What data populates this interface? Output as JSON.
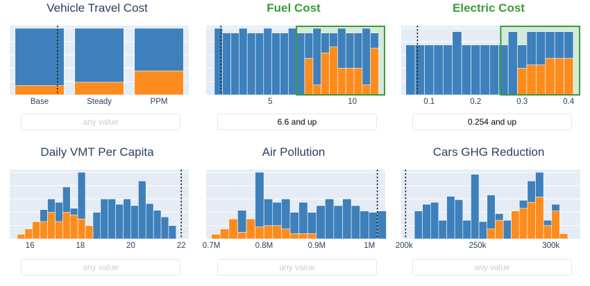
{
  "colors": {
    "total": "#3d80bb",
    "selected": "#fd8c1f",
    "plot_bg": "#e5ecf6",
    "grid": "#ffffff",
    "brush_fill": "#d3ead8",
    "brush_stroke": "#3c9a3c",
    "title_active": "#3c9a3c",
    "title": "#2a3f5f"
  },
  "charts": [
    {
      "id": "vehicle-travel-cost",
      "title": "Vehicle Travel Cost",
      "active": false,
      "filter_text": "any value",
      "filter_empty": true,
      "chart_data": {
        "type": "bar",
        "categories": [
          "Base",
          "Steady",
          "PPM"
        ],
        "series": [
          {
            "values": [
              1.0,
              1.0,
              1.0
            ]
          },
          {
            "values": [
              0.14,
              0.19,
              0.36
            ]
          }
        ],
        "ylim": [
          0,
          1.04
        ],
        "reference_line": 0.3,
        "x_ticks": [
          {
            "label": "Base",
            "index": 0
          },
          {
            "label": "Steady",
            "index": 1
          },
          {
            "label": "PPM",
            "index": 2
          }
        ],
        "grid": true
      }
    },
    {
      "id": "fuel-cost",
      "title": "Fuel Cost",
      "active": true,
      "filter_text": "6.6 and up",
      "filter_empty": false,
      "chart_data": {
        "type": "bar",
        "xlim": [
          1.1,
          12
        ],
        "bin_width": 0.5,
        "bin_start": 1.6,
        "series": [
          {
            "values": [
              1.0,
              0.93,
              0.93,
              1.0,
              0.93,
              0.93,
              1.0,
              0.93,
              0.93,
              1.0,
              0.93,
              0.93,
              1.0,
              0.93,
              0.93,
              1.0,
              0.93,
              0.93,
              1.0,
              0.93
            ]
          },
          {
            "values": [
              0,
              0,
              0,
              0,
              0,
              0,
              0,
              0,
              0,
              0,
              0,
              0.55,
              0.15,
              0.63,
              0.72,
              0.4,
              0.4,
              0.4,
              0.15,
              0.7
            ]
          }
        ],
        "ylim": [
          0,
          1.04
        ],
        "reference_line": 2.0,
        "brush": [
          6.6,
          12
        ],
        "x_ticks": [
          {
            "label": "5",
            "value": 5
          },
          {
            "label": "10",
            "value": 10
          }
        ],
        "grid": true
      }
    },
    {
      "id": "electric-cost",
      "title": "Electric Cost",
      "active": true,
      "filter_text": "0.254 and up",
      "filter_empty": false,
      "chart_data": {
        "type": "bar",
        "xlim": [
          0.04,
          0.425
        ],
        "bin_width": 0.02,
        "bin_start": 0.05,
        "series": [
          {
            "values": [
              0.75,
              0.75,
              0.75,
              0.75,
              0.75,
              0.95,
              0.75,
              0.75,
              0.75,
              0.75,
              0.75,
              0.95,
              0.75,
              0.95,
              0.95,
              0.95,
              0.95,
              0.95
            ]
          },
          {
            "values": [
              0,
              0,
              0,
              0,
              0,
              0,
              0,
              0,
              0,
              0,
              0,
              0,
              0.4,
              0.45,
              0.45,
              0.55,
              0.55,
              0.55
            ]
          }
        ],
        "ylim": [
          0,
          1.04
        ],
        "reference_line": 0.075,
        "brush": [
          0.254,
          0.425
        ],
        "x_ticks": [
          {
            "label": "0.1",
            "value": 0.1
          },
          {
            "label": "0.2",
            "value": 0.2
          },
          {
            "label": "0.3",
            "value": 0.3
          },
          {
            "label": "0.4",
            "value": 0.4
          }
        ],
        "grid": true
      }
    },
    {
      "id": "daily-vmt-per-capita",
      "title": "Daily VMT Per Capita",
      "active": false,
      "filter_text": "any value",
      "filter_empty": true,
      "chart_data": {
        "type": "bar",
        "xlim": [
          15.2,
          22.3
        ],
        "bin_width": 0.3,
        "bin_start": 15.5,
        "series": [
          {
            "values": [
              0.07,
              0.15,
              0.26,
              0.44,
              0.6,
              0.55,
              0.78,
              0.46,
              1.0,
              0.2,
              0.4,
              0.6,
              0.6,
              0.52,
              0.6,
              0.5,
              0.87,
              0.53,
              0.43,
              0.33,
              0.2
            ]
          },
          {
            "values": [
              0.07,
              0.15,
              0.26,
              0.26,
              0.4,
              0.26,
              0.4,
              0.36,
              0.3,
              0.2,
              0,
              0,
              0,
              0,
              0,
              0,
              0,
              0,
              0,
              0,
              0
            ]
          }
        ],
        "ylim": [
          0,
          1.04
        ],
        "reference_line": 22,
        "x_ticks": [
          {
            "label": "16",
            "value": 16
          },
          {
            "label": "18",
            "value": 18
          },
          {
            "label": "20",
            "value": 20
          },
          {
            "label": "22",
            "value": 22
          }
        ],
        "grid": true
      }
    },
    {
      "id": "air-pollution",
      "title": "Air Pollution",
      "active": false,
      "filter_text": "any value",
      "filter_empty": true,
      "chart_data": {
        "type": "bar",
        "xlim": [
          0.69,
          1.03
        ],
        "bin_width": 0.0166,
        "bin_start": 0.7,
        "series": [
          {
            "values": [
              0.07,
              0.15,
              0.3,
              0.43,
              0.3,
              1.0,
              0.6,
              0.55,
              0.6,
              0.4,
              0.55,
              0.4,
              0.5,
              0.6,
              0.5,
              0.6,
              0.5,
              0.42,
              0.4,
              0.42
            ]
          },
          {
            "values": [
              0.07,
              0.15,
              0.3,
              0.1,
              0.3,
              0.18,
              0.2,
              0.2,
              0.15,
              0.08,
              0.08,
              0.08,
              0,
              0,
              0,
              0,
              0,
              0,
              0,
              0
            ]
          }
        ],
        "ylim": [
          0,
          1.04
        ],
        "reference_line": 1.015,
        "x_ticks": [
          {
            "label": "0.7M",
            "value": 0.7
          },
          {
            "label": "0.8M",
            "value": 0.8
          },
          {
            "label": "0.9M",
            "value": 0.9
          },
          {
            "label": "1M",
            "value": 1.0
          }
        ],
        "grid": true
      }
    },
    {
      "id": "cars-ghg-reduction",
      "title": "Cars GHG Reduction",
      "active": false,
      "filter_text": "any value",
      "filter_empty": true,
      "chart_data": {
        "type": "bar",
        "xlim": [
          198,
          320
        ],
        "bin_width": 5.5,
        "bin_start": 207,
        "series": [
          {
            "values": [
              0.42,
              0.52,
              0.55,
              0.28,
              0.64,
              0.59,
              0.28,
              0.97,
              0.26,
              0.66,
              0.38,
              0.28,
              0.42,
              0.58,
              0.87,
              1.0,
              0.28,
              0.52,
              0.08
            ]
          },
          {
            "values": [
              0,
              0,
              0,
              0,
              0,
              0,
              0,
              0,
              0,
              0.15,
              0.28,
              0,
              0.42,
              0.46,
              0.55,
              0.63,
              0.2,
              0.42,
              0.08
            ]
          }
        ],
        "ylim": [
          0,
          1.04
        ],
        "reference_line": 201,
        "x_ticks": [
          {
            "label": "200k",
            "value": 200
          },
          {
            "label": "250k",
            "value": 250
          },
          {
            "label": "300k",
            "value": 300
          }
        ],
        "grid": true
      }
    }
  ]
}
